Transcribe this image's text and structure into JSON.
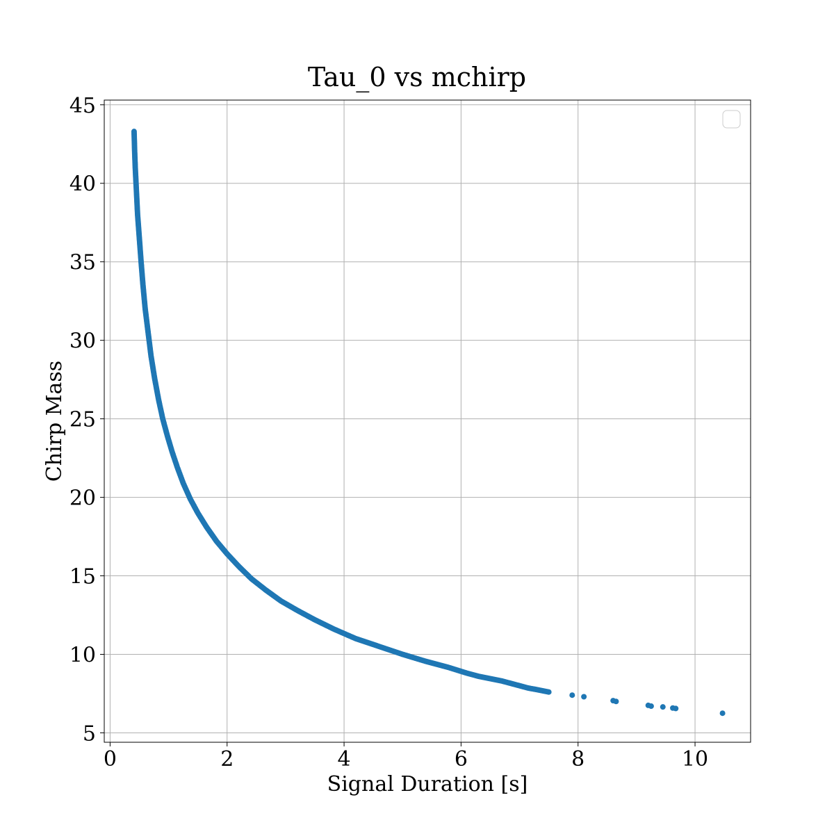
{
  "chart_data": {
    "type": "scatter",
    "title": "Tau_0 vs mchirp",
    "xlabel": "Signal Duration [s]",
    "ylabel": "Chirp Mass",
    "xlim": [
      -0.1,
      10.95
    ],
    "ylim": [
      4.4,
      45.3
    ],
    "xticks": [
      0,
      2,
      4,
      6,
      8,
      10
    ],
    "yticks": [
      5,
      10,
      15,
      20,
      25,
      30,
      35,
      40,
      45
    ],
    "grid": true,
    "legend": "top-right (empty)",
    "series": [
      {
        "color": "#1f77b4",
        "x": [
          0.41,
          0.42,
          0.43,
          0.45,
          0.47,
          0.5,
          0.53,
          0.56,
          0.6,
          0.65,
          0.7,
          0.76,
          0.83,
          0.9,
          0.98,
          1.06,
          1.15,
          1.25,
          1.37,
          1.5,
          1.65,
          1.82,
          2.0,
          2.2,
          2.42,
          2.66,
          2.92,
          3.2,
          3.5,
          3.83,
          4.2,
          4.6,
          5.0,
          5.4,
          5.8,
          6.1,
          6.3,
          6.5,
          6.7,
          6.85,
          7.0,
          7.15,
          7.3,
          7.5,
          7.9,
          8.1,
          8.6,
          8.65,
          9.2,
          9.25,
          9.45,
          9.62,
          9.67,
          10.47
        ],
        "y": [
          43.3,
          42.0,
          41.0,
          39.5,
          38.0,
          36.5,
          35.0,
          33.6,
          32.0,
          30.5,
          29.0,
          27.6,
          26.2,
          25.0,
          23.9,
          22.9,
          21.9,
          20.9,
          19.9,
          19.0,
          18.1,
          17.2,
          16.4,
          15.6,
          14.8,
          14.1,
          13.4,
          12.8,
          12.2,
          11.6,
          11.0,
          10.5,
          10.0,
          9.55,
          9.15,
          8.8,
          8.6,
          8.45,
          8.3,
          8.15,
          8.0,
          7.85,
          7.75,
          7.6,
          7.4,
          7.3,
          7.05,
          7.0,
          6.75,
          6.7,
          6.65,
          6.58,
          6.55,
          6.25
        ]
      }
    ]
  }
}
